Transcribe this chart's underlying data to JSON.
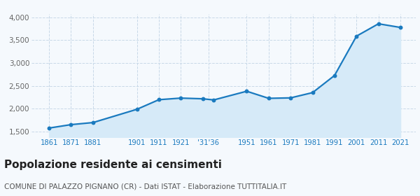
{
  "years": [
    1861,
    1871,
    1881,
    1901,
    1911,
    1921,
    1931,
    1936,
    1951,
    1961,
    1971,
    1981,
    1991,
    2001,
    2011,
    2021
  ],
  "population": [
    1580,
    1655,
    1700,
    1990,
    2200,
    2235,
    2220,
    2195,
    2385,
    2230,
    2240,
    2355,
    2730,
    3590,
    3860,
    3780
  ],
  "x_tick_labels": [
    "1861",
    "1871",
    "1881",
    "1901",
    "1911",
    "1921",
    "'31'36",
    "1951",
    "1961",
    "1971",
    "1981",
    "1991",
    "2001",
    "2011",
    "2021"
  ],
  "x_tick_positions": [
    1861,
    1871,
    1881,
    1901,
    1911,
    1921,
    1933.5,
    1951,
    1961,
    1971,
    1981,
    1991,
    2001,
    2011,
    2021
  ],
  "ylim": [
    1380,
    4080
  ],
  "yticks": [
    1500,
    2000,
    2500,
    3000,
    3500,
    4000
  ],
  "ytick_labels": [
    "1,500",
    "2,000",
    "2,500",
    "3,000",
    "3,500",
    "4,000"
  ],
  "line_color": "#1a7abf",
  "fill_color": "#d6eaf8",
  "marker_color": "#1a7abf",
  "grid_color": "#c8d8e8",
  "bg_color": "#f5f9fd",
  "title": "Popolazione residente ai censimenti",
  "subtitle": "COMUNE DI PALAZZO PIGNANO (CR) - Dati ISTAT - Elaborazione TUTTITALIA.IT",
  "title_fontsize": 11,
  "subtitle_fontsize": 7.5,
  "xlim_left": 1853,
  "xlim_right": 2028
}
